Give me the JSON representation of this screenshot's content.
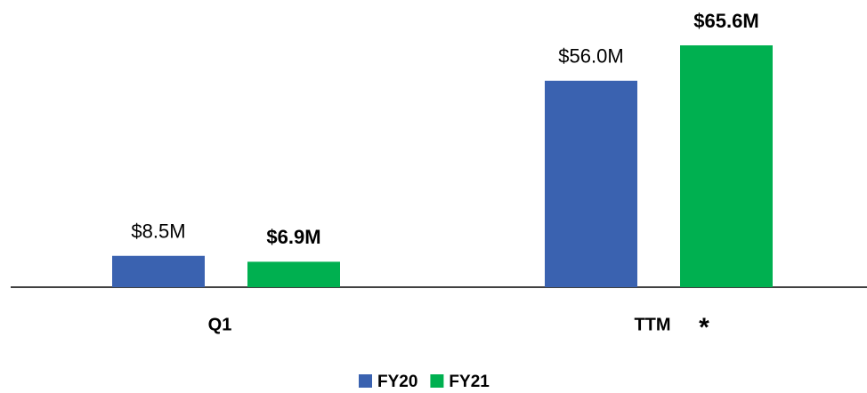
{
  "chart_data": {
    "type": "bar",
    "categories": [
      "Q1",
      "TTM"
    ],
    "series": [
      {
        "name": "FY20",
        "color": "#3a62b0",
        "values": [
          8.5,
          56.0
        ],
        "value_labels": [
          "$8.5M",
          "$56.0M"
        ]
      },
      {
        "name": "FY21",
        "color": "#00b050",
        "values": [
          6.9,
          65.6
        ],
        "value_labels": [
          "$6.9M",
          "$65.6M"
        ]
      }
    ],
    "annotation": "*",
    "legend": "bottom"
  }
}
